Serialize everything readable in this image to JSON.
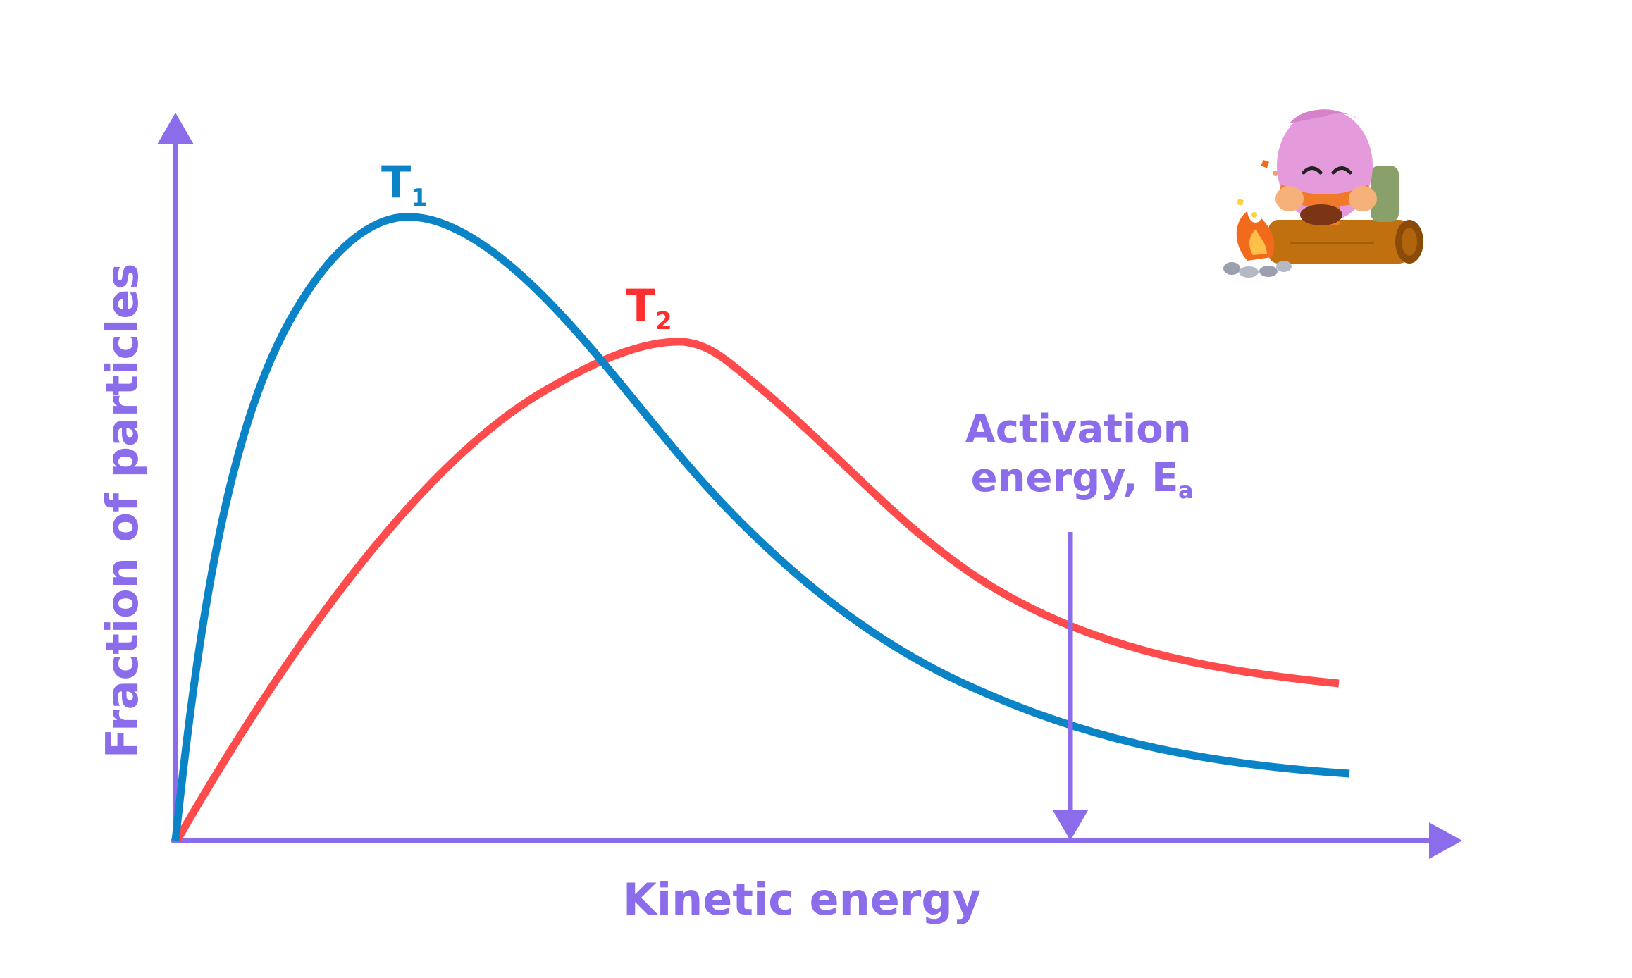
{
  "diagram": {
    "xlabel": "Kinetic energy",
    "ylabel": "Fraction of particles",
    "activation_label_line1": "Activation",
    "activation_label_line2_prefix": "energy, E",
    "activation_label_subscript": "a"
  },
  "curves": [
    {
      "name_main": "T",
      "name_sub": "1",
      "color": "#0a84c6"
    },
    {
      "name_main": "T",
      "name_sub": "2",
      "color": "#ff4b4b"
    }
  ],
  "colors": {
    "axis": "#8b6cea",
    "label": "#8b6cea"
  },
  "mascot": {
    "icon": "campfire-mascot-icon"
  }
}
